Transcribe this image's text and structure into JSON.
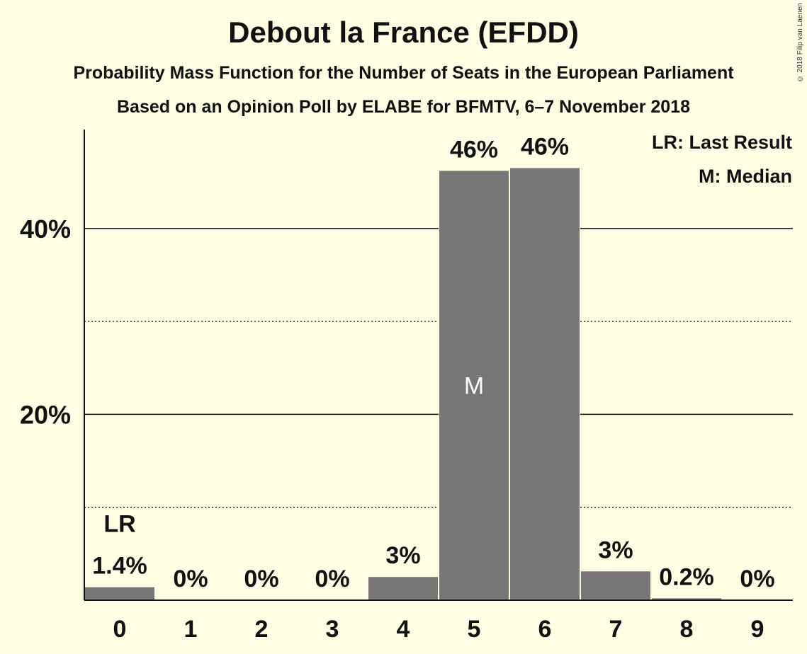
{
  "title": "Debout la France (EFDD)",
  "subtitle": "Probability Mass Function for the Number of Seats in the European Parliament",
  "poll": "Based on an Opinion Poll by ELABE for BFMTV, 6–7 November 2018",
  "copyright": "© 2018 Filip van Laenen",
  "legend": {
    "lr": "LR: Last Result",
    "m": "M: Median"
  },
  "colors": {
    "background": "#fffde3",
    "bar": "#777777"
  },
  "chart_data": {
    "type": "bar",
    "categories": [
      "0",
      "1",
      "2",
      "3",
      "4",
      "5",
      "6",
      "7",
      "8",
      "9"
    ],
    "values": [
      1.4,
      0,
      0,
      0,
      2.5,
      46.2,
      46.5,
      3.1,
      0.2,
      0
    ],
    "labels": [
      "1.4%",
      "0%",
      "0%",
      "0%",
      "3%",
      "46%",
      "46%",
      "3%",
      "0.2%",
      "0%"
    ],
    "ylim": [
      0,
      50
    ],
    "yticks": [
      {
        "value": 20,
        "label": "20%"
      },
      {
        "value": 40,
        "label": "40%"
      }
    ],
    "minor_gridlines": [
      10,
      30
    ],
    "last_result": {
      "category": "0",
      "label": "LR"
    },
    "median": {
      "category": "5",
      "label": "M"
    },
    "legend_position": "top-right"
  }
}
